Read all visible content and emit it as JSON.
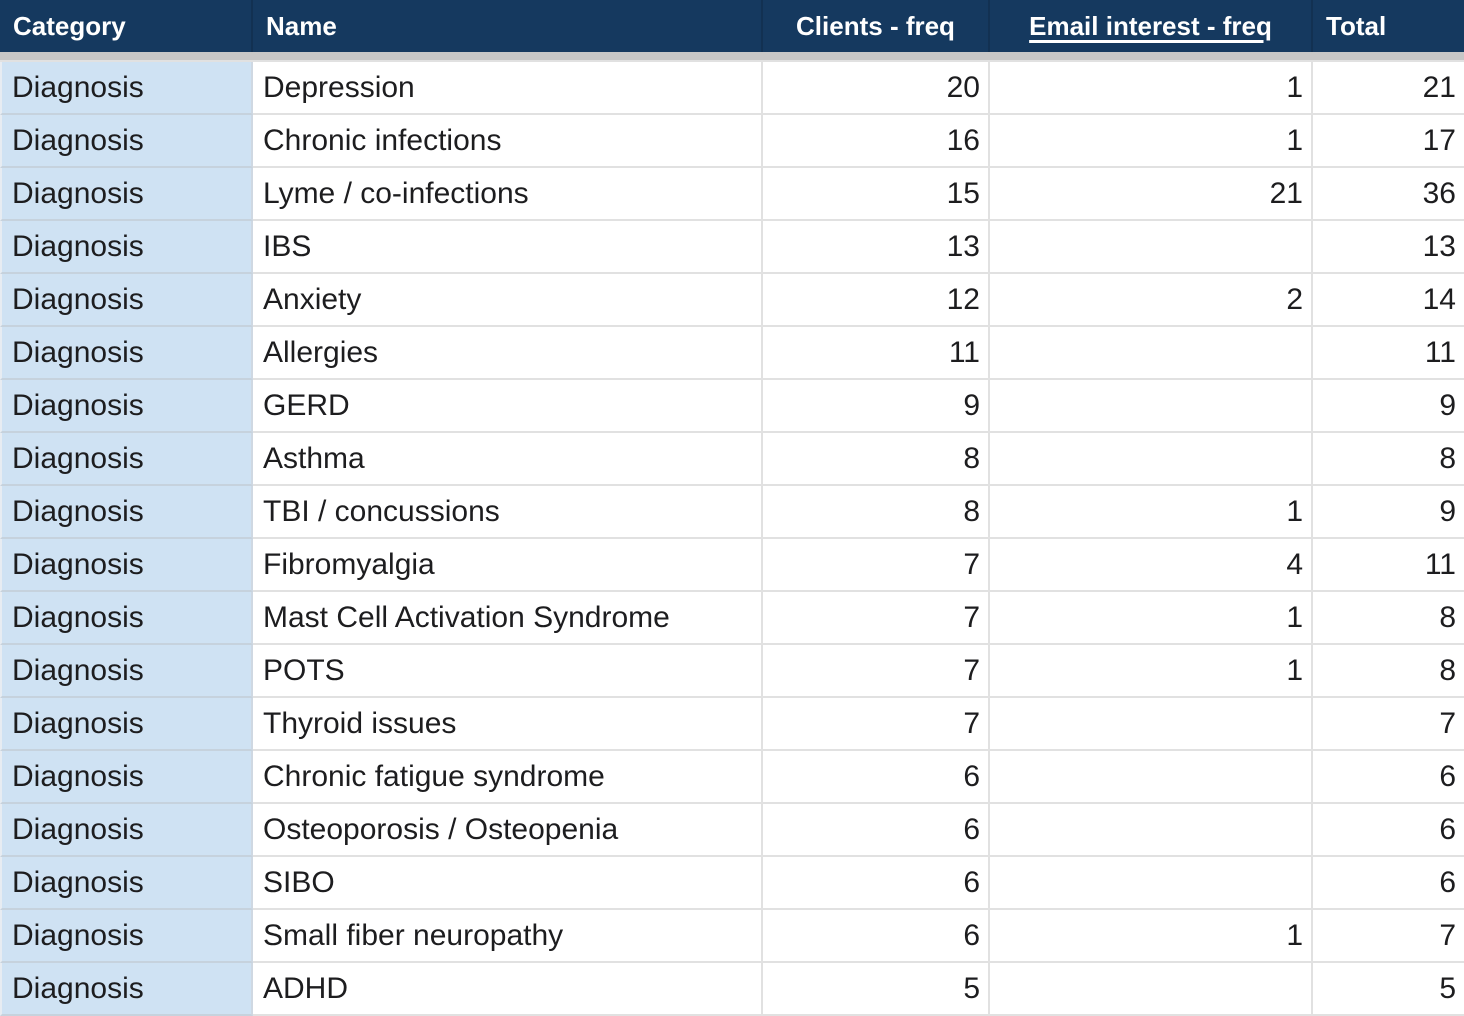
{
  "table": {
    "header": {
      "category": "Category",
      "name": "Name",
      "clients": "Clients - freq",
      "email": "Email interest - freq",
      "total": "Total"
    },
    "rows": [
      {
        "category": "Diagnosis",
        "name": "Depression",
        "clients": "20",
        "email": "1",
        "total": "21"
      },
      {
        "category": "Diagnosis",
        "name": "Chronic infections",
        "clients": "16",
        "email": "1",
        "total": "17"
      },
      {
        "category": "Diagnosis",
        "name": "Lyme / co-infections",
        "clients": "15",
        "email": "21",
        "total": "36"
      },
      {
        "category": "Diagnosis",
        "name": "IBS",
        "clients": "13",
        "email": "",
        "total": "13"
      },
      {
        "category": "Diagnosis",
        "name": "Anxiety",
        "clients": "12",
        "email": "2",
        "total": "14"
      },
      {
        "category": "Diagnosis",
        "name": "Allergies",
        "clients": "11",
        "email": "",
        "total": "11"
      },
      {
        "category": "Diagnosis",
        "name": "GERD",
        "clients": "9",
        "email": "",
        "total": "9"
      },
      {
        "category": "Diagnosis",
        "name": "Asthma",
        "clients": "8",
        "email": "",
        "total": "8"
      },
      {
        "category": "Diagnosis",
        "name": "TBI / concussions",
        "clients": "8",
        "email": "1",
        "total": "9"
      },
      {
        "category": "Diagnosis",
        "name": "Fibromyalgia",
        "clients": "7",
        "email": "4",
        "total": "11"
      },
      {
        "category": "Diagnosis",
        "name": "Mast Cell Activation Syndrome",
        "clients": "7",
        "email": "1",
        "total": "8"
      },
      {
        "category": "Diagnosis",
        "name": "POTS",
        "clients": "7",
        "email": "1",
        "total": "8"
      },
      {
        "category": "Diagnosis",
        "name": "Thyroid issues",
        "clients": "7",
        "email": "",
        "total": "7"
      },
      {
        "category": "Diagnosis",
        "name": "Chronic fatigue syndrome",
        "clients": "6",
        "email": "",
        "total": "6"
      },
      {
        "category": "Diagnosis",
        "name": "Osteoporosis / Osteopenia",
        "clients": "6",
        "email": "",
        "total": "6"
      },
      {
        "category": "Diagnosis",
        "name": "SIBO",
        "clients": "6",
        "email": "",
        "total": "6"
      },
      {
        "category": "Diagnosis",
        "name": "Small fiber neuropathy",
        "clients": "6",
        "email": "1",
        "total": "7"
      },
      {
        "category": "Diagnosis",
        "name": "ADHD",
        "clients": "5",
        "email": "",
        "total": "5"
      }
    ]
  },
  "colors": {
    "header_bg": "#15395f",
    "header_text": "#ffffff",
    "category_cell_bg": "#cfe2f3",
    "body_text": "#1d1d1f",
    "gridline": "#e1e1e1",
    "category_gridline": "#c6d2dd",
    "frozen_divider": "#c7c7c7"
  }
}
